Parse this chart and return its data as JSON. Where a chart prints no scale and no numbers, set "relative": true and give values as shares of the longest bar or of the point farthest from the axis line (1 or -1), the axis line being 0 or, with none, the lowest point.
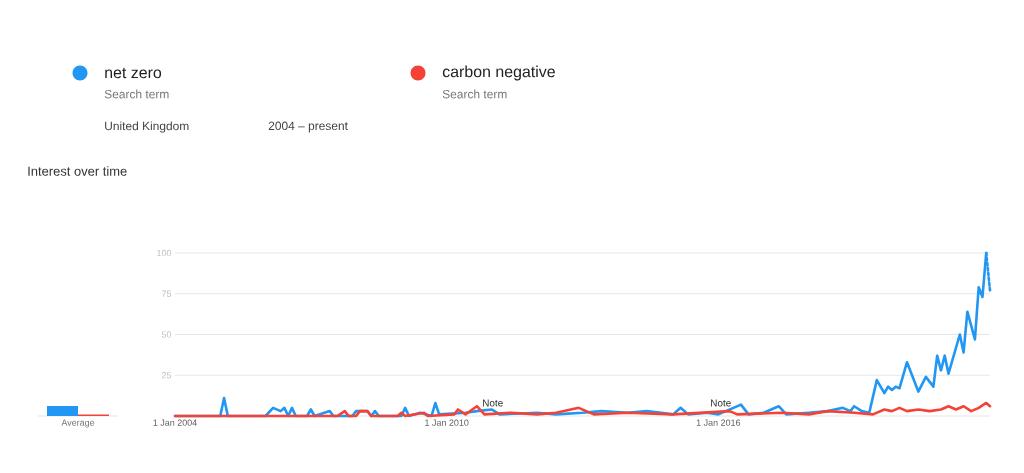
{
  "chart_data": [
    {
      "type": "bar",
      "categories": [
        "Average"
      ],
      "series": [
        {
          "color": "#2196f3",
          "values": [
            1
          ]
        },
        {
          "color": "#f44336",
          "values": [
            0.15
          ]
        }
      ],
      "relative": true,
      "tick_labels": "x"
    },
    {
      "type": "line",
      "title": "Interest over time",
      "annotations": [
        "Search term",
        "Search term",
        "United Kingdom",
        "2004 – present",
        "Note",
        "Note"
      ],
      "series": [
        {
          "name": "net zero",
          "color": "#2196f3",
          "x": [
            "2004-01",
            "2005-01",
            "2005-02",
            "2005-03",
            "2006-01",
            "2006-03",
            "2006-05",
            "2006-06",
            "2006-07",
            "2006-08",
            "2006-09",
            "2006-12",
            "2007-01",
            "2007-02",
            "2007-06",
            "2007-07",
            "2007-12",
            "2008-01",
            "2008-04",
            "2008-05",
            "2008-06",
            "2008-07",
            "2009-01",
            "2009-02",
            "2009-03",
            "2009-06",
            "2009-09",
            "2009-10",
            "2009-11",
            "2010-06",
            "2010-09",
            "2011-01",
            "2011-03",
            "2012-01",
            "2012-06",
            "2013-01",
            "2013-06",
            "2014-01",
            "2014-06",
            "2015-01",
            "2015-03",
            "2015-05",
            "2015-10",
            "2016-01",
            "2016-07",
            "2016-09",
            "2017-01",
            "2017-05",
            "2017-07",
            "2018-01",
            "2018-06",
            "2018-10",
            "2018-12",
            "2019-01",
            "2019-03",
            "2019-05",
            "2019-07",
            "2019-09",
            "2019-10",
            "2019-11",
            "2019-12",
            "2020-01",
            "2020-03",
            "2020-06",
            "2020-08",
            "2020-10",
            "2020-11",
            "2020-12",
            "2021-01",
            "2021-02",
            "2021-05",
            "2021-06",
            "2021-07",
            "2021-09",
            "2021-10",
            "2021-11",
            "2021-12"
          ],
          "values": [
            0,
            0,
            11,
            0,
            0,
            5,
            3,
            5,
            0,
            5,
            0,
            0,
            4,
            0,
            3,
            0,
            0,
            3,
            3,
            0,
            3,
            0,
            0,
            5,
            0,
            2,
            0,
            8,
            1,
            2,
            3,
            4,
            1,
            2,
            1,
            2,
            3,
            2,
            3,
            1,
            5,
            1,
            2,
            1,
            7,
            1,
            2,
            6,
            1,
            2,
            3,
            5,
            3,
            6,
            3,
            2,
            22,
            14,
            18,
            16,
            18,
            17,
            33,
            15,
            24,
            18,
            37,
            28,
            37,
            26,
            50,
            39,
            64,
            47,
            79,
            73,
            100
          ]
        },
        {
          "color": "#2196f3",
          "line_style": "dotted",
          "x": [
            "2021-12",
            "2022-01"
          ],
          "values": [
            100,
            77
          ]
        },
        {
          "name": "carbon negative",
          "color": "#f44336",
          "x": [
            "2004-01",
            "2007-08",
            "2007-10",
            "2007-11",
            "2008-01",
            "2008-02",
            "2008-04",
            "2008-05",
            "2008-12",
            "2009-01",
            "2009-02",
            "2009-07",
            "2009-08",
            "2010-03",
            "2010-04",
            "2010-06",
            "2010-09",
            "2010-11",
            "2011-06",
            "2012-01",
            "2012-06",
            "2012-12",
            "2013-02",
            "2013-04",
            "2014-01",
            "2015-01",
            "2016-04",
            "2016-06",
            "2017-06",
            "2018-01",
            "2018-06",
            "2019-01",
            "2019-06",
            "2019-09",
            "2019-11",
            "2020-01",
            "2020-03",
            "2020-06",
            "2020-09",
            "2020-12",
            "2021-02",
            "2021-04",
            "2021-06",
            "2021-08",
            "2021-10",
            "2021-12",
            "2022-01"
          ],
          "values": [
            0,
            0,
            3,
            0,
            0,
            3,
            3,
            0,
            0,
            2,
            0,
            2,
            0,
            1,
            4,
            1,
            6,
            1,
            2,
            1,
            2,
            5,
            3,
            1,
            2,
            1,
            3,
            1,
            2,
            1,
            3,
            2,
            1,
            4,
            3,
            5,
            3,
            4,
            3,
            4,
            6,
            4,
            6,
            3,
            5,
            8,
            6
          ]
        }
      ],
      "xlim": [
        "2004-01",
        "2022-01"
      ],
      "xticks": [
        {
          "value": "2004-01-01",
          "label": "1 Jan 2004"
        },
        {
          "value": "2010-01-01",
          "label": "1 Jan 2010"
        },
        {
          "value": "2016-01-01",
          "label": "1 Jan 2016"
        }
      ],
      "ylim": [
        0,
        100
      ],
      "yticks": [
        25,
        50,
        75,
        100
      ],
      "grid": "y",
      "legend": "top left",
      "marker": "none"
    }
  ]
}
